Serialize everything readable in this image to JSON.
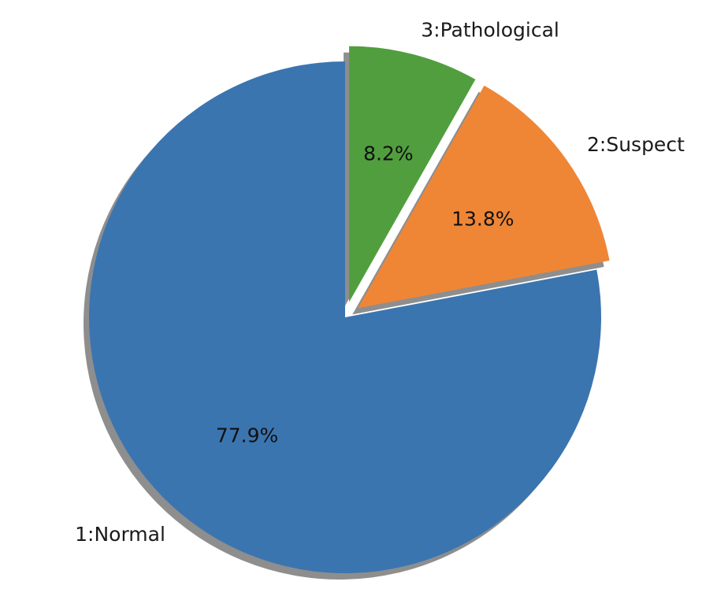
{
  "chart_data": {
    "type": "pie",
    "title": "",
    "slices": [
      {
        "label": "1:Normal",
        "percent_label": "77.9%",
        "value": 77.9,
        "color": "#3b75af",
        "exploded": false
      },
      {
        "label": "2:Suspect",
        "percent_label": "13.8%",
        "value": 13.8,
        "color": "#ef8636",
        "exploded": true
      },
      {
        "label": "3:Pathological",
        "percent_label": "8.2%",
        "value": 8.2,
        "color": "#519e3e",
        "exploded": true
      }
    ],
    "start_angle": "top (12 o'clock)",
    "direction": "clockwise",
    "shadow": true,
    "legend": "none"
  }
}
